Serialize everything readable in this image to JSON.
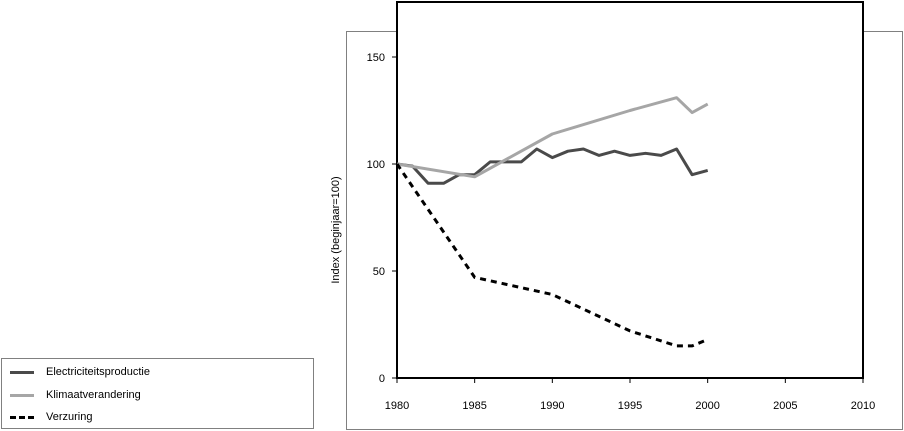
{
  "chart_data": {
    "type": "line",
    "title": "",
    "xlabel": "",
    "ylabel": "Index (beginjaar=100)",
    "xlim": [
      1980,
      2010
    ],
    "ylim": [
      0,
      160
    ],
    "x_ticks": [
      1980,
      1985,
      1990,
      1995,
      2000,
      2005,
      2010
    ],
    "y_ticks": [
      0,
      50,
      100,
      150
    ],
    "grid": false,
    "legend_position": "bottom-left, outside plot",
    "series": [
      {
        "name": "Electriciteitsproductie",
        "color": "#4a4a4a",
        "style": "solid",
        "x": [
          1980,
          1981,
          1982,
          1983,
          1984,
          1985,
          1986,
          1987,
          1988,
          1989,
          1990,
          1991,
          1992,
          1993,
          1994,
          1995,
          1996,
          1997,
          1998,
          1999,
          2000
        ],
        "y": [
          100,
          99,
          91,
          91,
          95,
          95,
          101,
          101,
          101,
          107,
          103,
          106,
          107,
          104,
          106,
          104,
          105,
          104,
          107,
          95,
          97
        ]
      },
      {
        "name": "Klimaatverandering",
        "color": "#a6a6a6",
        "style": "solid",
        "x": [
          1980,
          1985,
          1990,
          1995,
          1998,
          1999,
          2000
        ],
        "y": [
          100,
          94,
          114,
          125,
          131,
          124,
          128
        ]
      },
      {
        "name": "Verzuring",
        "color": "#000000",
        "style": "dashed",
        "x": [
          1980,
          1985,
          1990,
          1995,
          1998,
          1999,
          2000
        ],
        "y": [
          100,
          47,
          39,
          22,
          15,
          15,
          18
        ]
      }
    ]
  }
}
